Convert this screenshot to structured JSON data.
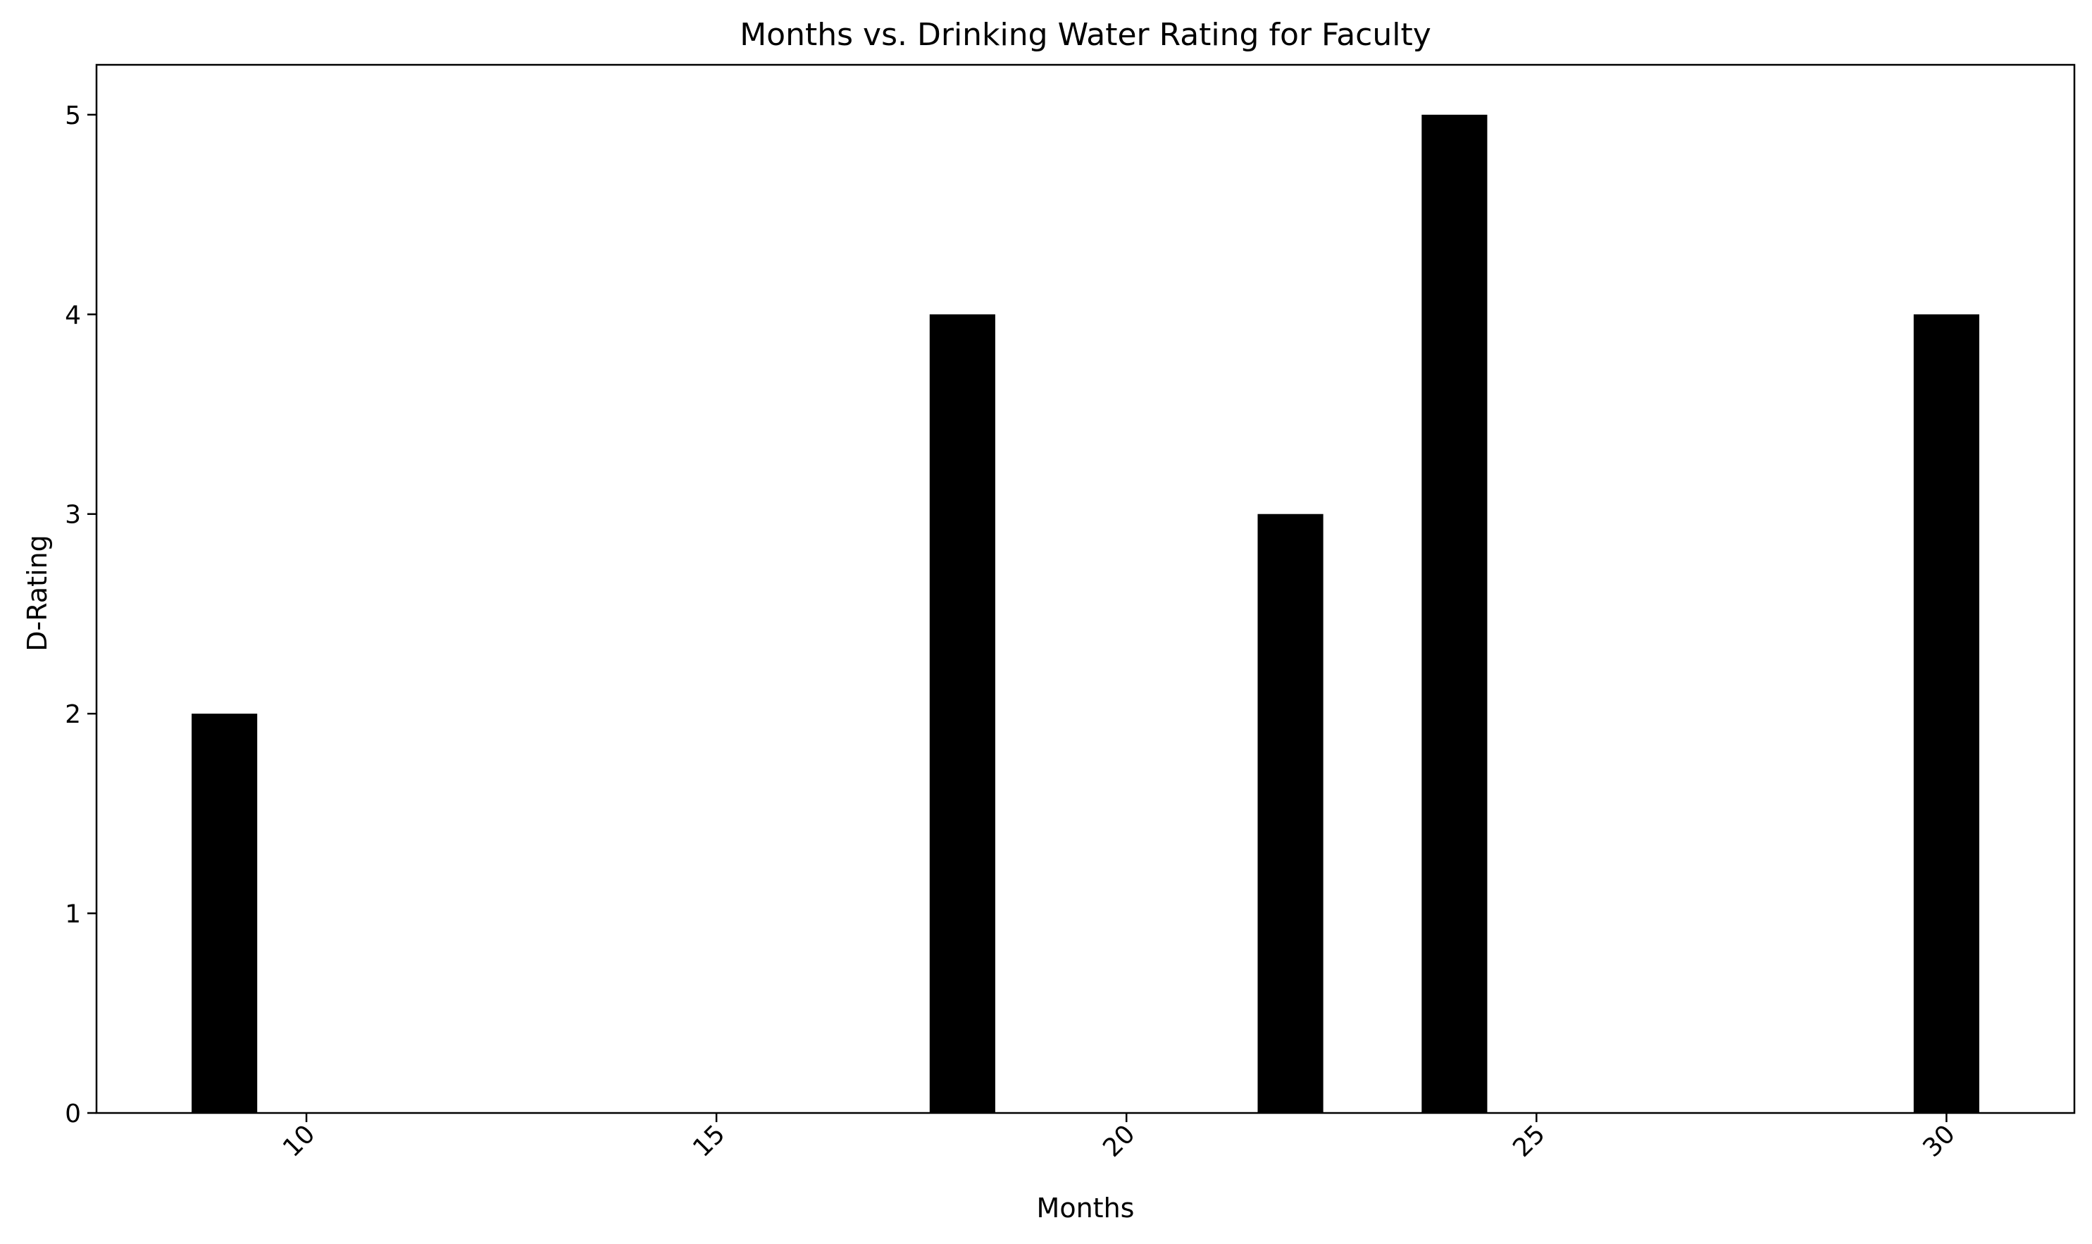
{
  "chart_data": {
    "type": "bar",
    "title": "Months vs. Drinking Water Rating for Faculty",
    "xlabel": "Months",
    "ylabel": "D-Rating",
    "x": [
      9,
      18,
      22,
      24,
      30
    ],
    "values": [
      2,
      4,
      3,
      5,
      4
    ],
    "bar_width": 0.8,
    "xlim": [
      7.44,
      31.56
    ],
    "ylim": [
      0,
      5.25
    ],
    "xticks": [
      10,
      15,
      20,
      25,
      30
    ],
    "yticks": [
      0,
      1,
      2,
      3,
      4,
      5
    ],
    "xtick_rotation": -45,
    "grid": false,
    "bar_color": "#000000"
  }
}
